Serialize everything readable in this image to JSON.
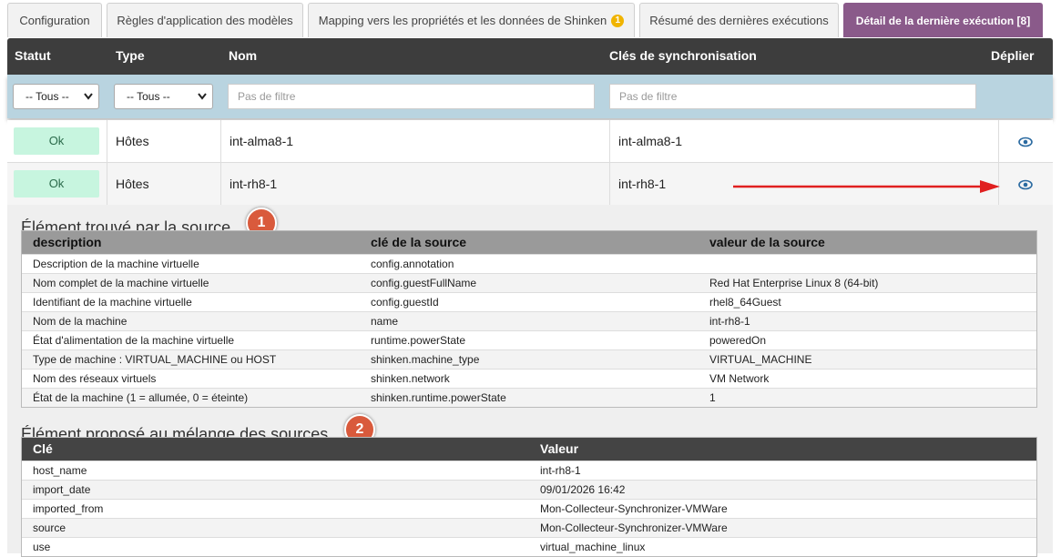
{
  "tabs": [
    {
      "label": "Configuration"
    },
    {
      "label": "Règles d'application des modèles"
    },
    {
      "label": "Mapping vers les propriétés et les données de Shinken",
      "badge": "1"
    },
    {
      "label": "Résumé des dernières exécutions"
    },
    {
      "label": "Détail de la dernière exécution [8]"
    }
  ],
  "table": {
    "headers": [
      "Statut",
      "Type",
      "Nom",
      "Clés de synchronisation",
      "Déplier"
    ],
    "filters": {
      "status": "-- Tous --",
      "type": "-- Tous --",
      "name": "Pas de filtre",
      "key": "Pas de filtre"
    },
    "rows": [
      [
        "Ok",
        "Hôtes",
        "int-alma8-1",
        "int-alma8-1"
      ],
      [
        "Ok",
        "Hôtes",
        "int-rh8-1",
        "int-rh8-1"
      ]
    ]
  },
  "source_section": {
    "title": "Élément trouvé par la source",
    "number": "1",
    "headers": [
      "description",
      "clé de la source",
      "valeur de la source"
    ],
    "rows": [
      [
        "Description de la machine virtuelle",
        "config.annotation",
        ""
      ],
      [
        "Nom complet de la machine virtuelle",
        "config.guestFullName",
        "Red Hat Enterprise Linux 8 (64-bit)"
      ],
      [
        "Identifiant de la machine virtuelle",
        "config.guestId",
        "rhel8_64Guest"
      ],
      [
        "Nom de la machine",
        "name",
        "int-rh8-1"
      ],
      [
        "État d'alimentation de la machine virtuelle",
        "runtime.powerState",
        "poweredOn"
      ],
      [
        "Type de machine : VIRTUAL_MACHINE ou HOST",
        "shinken.machine_type",
        "VIRTUAL_MACHINE"
      ],
      [
        "Nom des réseaux virtuels",
        "shinken.network",
        "VM Network"
      ],
      [
        "État de la machine (1 = allumée, 0 = éteinte)",
        "shinken.runtime.powerState",
        "1"
      ]
    ]
  },
  "merge_section": {
    "title": "Élément proposé au mélange des sources",
    "number": "2",
    "headers": [
      "Clé",
      "Valeur"
    ],
    "rows": [
      [
        "host_name",
        "int-rh8-1"
      ],
      [
        "import_date",
        "09/01/2026 16:42"
      ],
      [
        "imported_from",
        "Mon-Collecteur-Synchronizer-VMWare"
      ],
      [
        "source",
        "Mon-Collecteur-Synchronizer-VMWare"
      ],
      [
        "use",
        "virtual_machine_linux"
      ]
    ]
  }
}
